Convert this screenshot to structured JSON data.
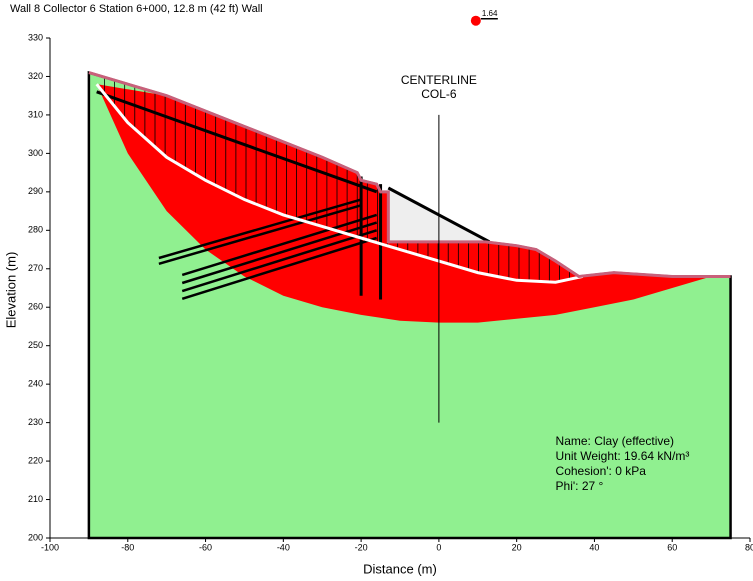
{
  "chart_data": {
    "type": "slope",
    "title": "Wall 8 Collector 6 Station 6+000, 12.8 m (42 ft) Wall",
    "x_label": "Distance (m)",
    "y_label": "Elevation (m)",
    "xlim": [
      -100,
      80
    ],
    "ylim": [
      200,
      330
    ],
    "xticks": [
      -100,
      -80,
      -60,
      -40,
      -20,
      0,
      20,
      40,
      60,
      80
    ],
    "yticks": [
      200,
      210,
      220,
      230,
      240,
      250,
      260,
      270,
      280,
      290,
      300,
      310,
      320,
      330
    ],
    "domain": {
      "xlim": [
        -90,
        75
      ],
      "bottom": 200,
      "color": "#90f090"
    },
    "ground_surface": {
      "color": "#c8607a",
      "x": [
        -90,
        -70,
        -50,
        -30,
        -21,
        -20,
        -16,
        -15,
        -13,
        -13,
        12,
        20,
        25,
        30,
        36,
        45,
        60,
        75
      ],
      "y": [
        321,
        315,
        307,
        299,
        295,
        293,
        292,
        290,
        290,
        277,
        277,
        276,
        275,
        272,
        268,
        269,
        268,
        268
      ]
    },
    "slip_envelope": {
      "color": "#ff0000",
      "x": [
        -88,
        -80,
        -70,
        -60,
        -50,
        -40,
        -30,
        -20,
        -10,
        0,
        10,
        20,
        30,
        40,
        50,
        60,
        70
      ],
      "y": [
        318,
        300,
        285,
        275,
        268,
        263,
        260,
        258,
        256.5,
        256,
        256,
        257,
        258,
        260,
        262,
        265,
        268
      ]
    },
    "critical_slip_surface": {
      "color": "#ffffff",
      "x": [
        -88,
        -80,
        -70,
        -60,
        -50,
        -40,
        -30,
        -20,
        -10,
        0,
        10,
        20,
        30,
        37
      ],
      "y": [
        318,
        308,
        299,
        293,
        288,
        284,
        281,
        278,
        275,
        272,
        269,
        267,
        266.5,
        268
      ]
    },
    "anchors": [
      {
        "x": [
          -72,
          -20
        ],
        "y": [
          272.8,
          288
        ]
      },
      {
        "x": [
          -72,
          -20
        ],
        "y": [
          271.3,
          286.5
        ]
      },
      {
        "x": [
          -66,
          -16
        ],
        "y": [
          268.4,
          284
        ]
      },
      {
        "x": [
          -66,
          -16
        ],
        "y": [
          266.3,
          282
        ]
      },
      {
        "x": [
          -66,
          -16
        ],
        "y": [
          264.2,
          280
        ]
      },
      {
        "x": [
          -66,
          -16
        ],
        "y": [
          262.2,
          278
        ]
      },
      {
        "x": [
          -88,
          -16
        ],
        "y": [
          316,
          290
        ]
      },
      {
        "x": [
          -13,
          13
        ],
        "y": [
          291,
          277
        ]
      }
    ],
    "walls": [
      {
        "x": [
          -20,
          -20
        ],
        "y": [
          263,
          294
        ]
      },
      {
        "x": [
          -15,
          -15
        ],
        "y": [
          262,
          292
        ]
      }
    ],
    "critical_center": {
      "x": 9.5,
      "y": 334.5,
      "factor_of_safety": 1.64,
      "color": "#ff0000"
    },
    "centerline": {
      "x": 0,
      "ylim": [
        230,
        310
      ],
      "label": [
        "CENTERLINE",
        "COL-6"
      ]
    },
    "material_info": {
      "x": 30,
      "y": 225,
      "lines": [
        "Name: Clay (effective)",
        "Unit Weight: 19.64 kN/m³",
        "Cohesion': 0 kPa",
        "Phi': 27 °"
      ]
    }
  }
}
